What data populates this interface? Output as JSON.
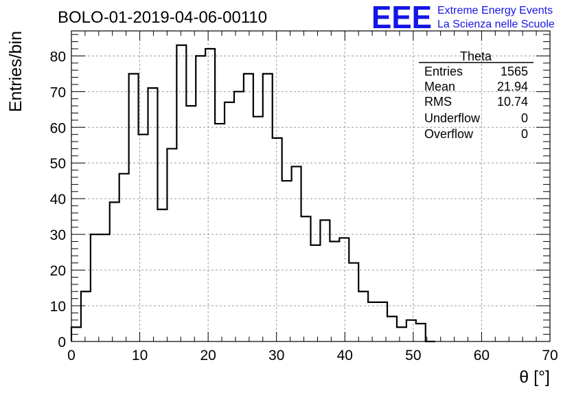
{
  "header": {
    "run_title": "BOLO-01-2019-04-06-00110",
    "logo_text": "EEE",
    "brand_line1": "Extreme Energy Events",
    "brand_line2": "La Scienza nelle Scuole",
    "brand_color": "#1515e6"
  },
  "stats_box": {
    "title": "Theta",
    "rows": [
      {
        "label": "Entries",
        "value": "1565"
      },
      {
        "label": "Mean",
        "value": "21.94"
      },
      {
        "label": "RMS",
        "value": "10.74"
      },
      {
        "label": "Underflow",
        "value": "0"
      },
      {
        "label": "Overflow",
        "value": "0"
      }
    ]
  },
  "chart_data": {
    "type": "histogram",
    "title": "BOLO-01-2019-04-06-00110",
    "xlabel": "θ [°]",
    "ylabel": "Entries/bin",
    "xlim": [
      0,
      70
    ],
    "ylim": [
      0,
      87
    ],
    "bin_width": 1.4,
    "bin_edges_start": 0,
    "values": [
      4,
      14,
      30,
      30,
      39,
      47,
      75,
      58,
      71,
      37,
      54,
      83,
      66,
      80,
      82,
      61,
      67,
      70,
      75,
      63,
      75,
      57,
      45,
      49,
      35,
      27,
      34,
      28,
      29,
      22,
      14,
      11,
      11,
      7,
      4,
      6,
      5,
      0
    ],
    "x_ticks": [
      "0",
      "10",
      "20",
      "30",
      "40",
      "50",
      "60",
      "70"
    ],
    "y_ticks": [
      "0",
      "10",
      "20",
      "30",
      "40",
      "50",
      "60",
      "70",
      "80"
    ],
    "grid": true,
    "line_color": "#000000",
    "grid_color": "#9a9a9a"
  }
}
